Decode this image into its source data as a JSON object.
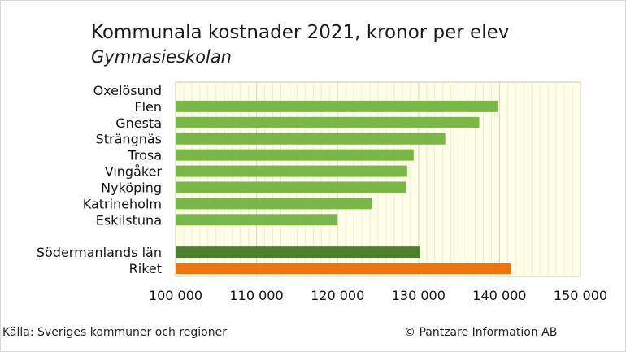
{
  "chart_data": {
    "type": "bar",
    "orientation": "horizontal",
    "title": "Kommunala kostnader 2021, kronor per elev",
    "subtitle": "Gymnasieskolan",
    "categories": [
      "Oxelösund",
      "Flen",
      "Gnesta",
      "Strängnäs",
      "Trosa",
      "Vingåker",
      "Nyköping",
      "Katrineholm",
      "Eskilstuna",
      "",
      "Södermanlands län",
      "Riket"
    ],
    "values": [
      null,
      139800,
      137500,
      133300,
      129400,
      128600,
      128500,
      124200,
      120000,
      null,
      130200,
      141400
    ],
    "bar_colors": [
      "#7ab648",
      "#7ab648",
      "#7ab648",
      "#7ab648",
      "#7ab648",
      "#7ab648",
      "#7ab648",
      "#7ab648",
      "#7ab648",
      "#7ab648",
      "#4e7f2e",
      "#e87510"
    ],
    "xlim": [
      100000,
      150000
    ],
    "xticks": [
      100000,
      110000,
      120000,
      130000,
      140000,
      150000
    ],
    "xtick_labels": [
      "100 000",
      "110 000",
      "120 000",
      "130 000",
      "140 000",
      "150 000"
    ],
    "plot_background": "#fdfde8",
    "grid": true,
    "legend": "none"
  },
  "footer": {
    "source": "Källa: Sveriges kommuner och regioner",
    "copyright": "© Pantzare Information AB"
  }
}
